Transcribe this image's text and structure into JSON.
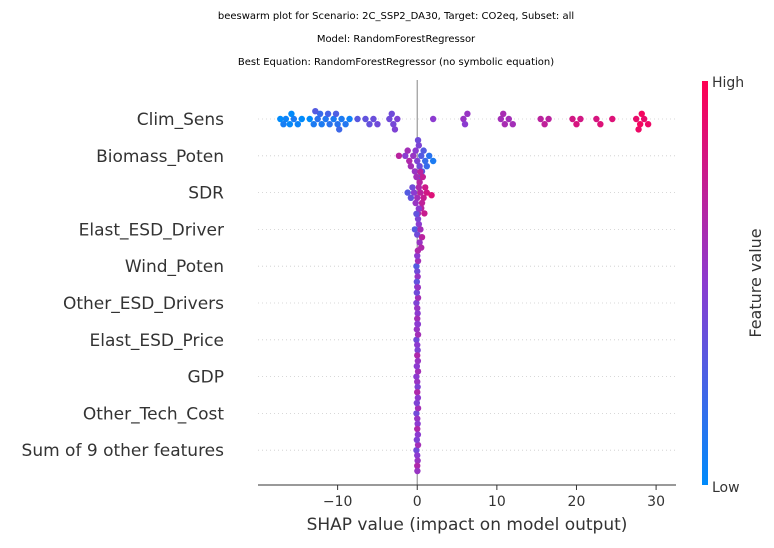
{
  "chart_data": {
    "type": "scatter",
    "subtype": "shap-beeswarm",
    "title_lines": [
      "beeswarm plot for Scenario: 2C_SSP2_DA30, Target: CO2eq, Subset: all",
      "Model: RandomForestRegressor",
      "Best Equation: RandomForestRegressor (no symbolic equation)"
    ],
    "xlabel": "SHAP value (impact on model output)",
    "xlim": [
      -20,
      32.5
    ],
    "xticks": [
      -10,
      0,
      10,
      20,
      30
    ],
    "xtick_labels": [
      "−10",
      "0",
      "10",
      "20",
      "30"
    ],
    "features": [
      "Clim_Sens",
      "Biomass_Poten",
      "SDR",
      "Elast_ESD_Driver",
      "Wind_Poten",
      "Other_ESD_Drivers",
      "Elast_ESD_Price",
      "GDP",
      "Other_Tech_Cost",
      "Sum of 9 other features"
    ],
    "colorbar": {
      "title": "Feature value",
      "high_label": "High",
      "low_label": "Low",
      "high_color": "#ff0052",
      "mid_color": "#8c3bd0",
      "low_color": "#008bfb"
    },
    "features_data": [
      {
        "name": "Clim_Sens",
        "points": [
          [
            -17.2,
            0.0
          ],
          [
            -16.5,
            0.05
          ],
          [
            -16.0,
            0.02
          ],
          [
            -15.5,
            0.1
          ],
          [
            -15.0,
            0.05
          ],
          [
            -14.5,
            0.0
          ],
          [
            -16.8,
            0.08
          ],
          [
            -15.8,
            0.0
          ],
          [
            -13.5,
            0.0
          ],
          [
            -13.0,
            0.1
          ],
          [
            -12.5,
            0.15
          ],
          [
            -12.0,
            0.1
          ],
          [
            -11.5,
            0.12
          ],
          [
            -11.0,
            0.15
          ],
          [
            -10.5,
            0.1
          ],
          [
            -10.0,
            0.15
          ],
          [
            -9.5,
            0.1
          ],
          [
            -9.0,
            0.12
          ],
          [
            -8.5,
            0.05
          ],
          [
            -12.2,
            0.2
          ],
          [
            -11.2,
            0.25
          ],
          [
            -10.2,
            0.28
          ],
          [
            -9.8,
            0.22
          ],
          [
            -12.8,
            0.3
          ],
          [
            -7.5,
            0.32
          ],
          [
            -6.5,
            0.35
          ],
          [
            -5.5,
            0.38
          ],
          [
            -5.0,
            0.4
          ],
          [
            -6.0,
            0.36
          ],
          [
            -3.5,
            0.4
          ],
          [
            -3.0,
            0.42
          ],
          [
            -2.5,
            0.45
          ],
          [
            -3.2,
            0.4
          ],
          [
            -2.8,
            0.45
          ],
          [
            2.0,
            0.5
          ],
          [
            5.8,
            0.55
          ],
          [
            6.0,
            0.5
          ],
          [
            6.3,
            0.55
          ],
          [
            10.5,
            0.6
          ],
          [
            11.0,
            0.62
          ],
          [
            11.5,
            0.6
          ],
          [
            10.8,
            0.62
          ],
          [
            12.0,
            0.6
          ],
          [
            15.5,
            0.7
          ],
          [
            16.0,
            0.72
          ],
          [
            16.5,
            0.7
          ],
          [
            19.5,
            0.8
          ],
          [
            20.0,
            0.82
          ],
          [
            20.5,
            0.8
          ],
          [
            22.5,
            0.82
          ],
          [
            23.0,
            0.85
          ],
          [
            24.5,
            0.85
          ],
          [
            27.5,
            0.9
          ],
          [
            28.0,
            0.95
          ],
          [
            28.5,
            0.9
          ],
          [
            29.0,
            0.92
          ],
          [
            28.2,
            0.95
          ],
          [
            27.8,
            0.92
          ]
        ]
      },
      {
        "name": "Biomass_Poten",
        "points": [
          [
            -2.3,
            0.7
          ],
          [
            -1.5,
            0.5
          ],
          [
            -1.0,
            0.65
          ],
          [
            -0.5,
            0.55
          ],
          [
            0.0,
            0.45
          ],
          [
            0.5,
            0.3
          ],
          [
            1.0,
            0.2
          ],
          [
            1.5,
            0.15
          ],
          [
            2.0,
            0.1
          ],
          [
            -1.2,
            0.6
          ],
          [
            -0.2,
            0.5
          ],
          [
            0.3,
            0.4
          ],
          [
            0.8,
            0.3
          ],
          [
            -0.8,
            0.6
          ],
          [
            0.2,
            0.45
          ],
          [
            0.6,
            0.3
          ],
          [
            1.2,
            0.2
          ],
          [
            -0.3,
            0.55
          ],
          [
            0.1,
            0.4
          ],
          [
            0.4,
            0.35
          ]
        ]
      },
      {
        "name": "SDR",
        "points": [
          [
            -1.2,
            0.3
          ],
          [
            -0.8,
            0.35
          ],
          [
            -0.4,
            0.5
          ],
          [
            0.0,
            0.6
          ],
          [
            0.4,
            0.7
          ],
          [
            0.8,
            0.75
          ],
          [
            1.2,
            0.8
          ],
          [
            1.8,
            0.85
          ],
          [
            -0.6,
            0.4
          ],
          [
            -0.2,
            0.55
          ],
          [
            0.2,
            0.65
          ],
          [
            0.6,
            0.72
          ],
          [
            1.0,
            0.78
          ],
          [
            0.3,
            0.68
          ],
          [
            0.5,
            0.7
          ],
          [
            -0.1,
            0.6
          ],
          [
            0.7,
            0.74
          ],
          [
            0.1,
            0.62
          ],
          [
            0.9,
            0.76
          ],
          [
            0.4,
            0.7
          ]
        ]
      },
      {
        "name": "Elast_ESD_Driver",
        "points": [
          [
            -0.3,
            0.3
          ],
          [
            0.0,
            0.4
          ],
          [
            0.2,
            0.5
          ],
          [
            0.4,
            0.6
          ],
          [
            0.6,
            0.7
          ],
          [
            0.1,
            0.45
          ],
          [
            0.3,
            0.55
          ],
          [
            -0.1,
            0.35
          ],
          [
            0.5,
            0.65
          ],
          [
            0.2,
            0.5
          ]
        ]
      },
      {
        "name": "Wind_Poten",
        "points": [
          [
            -0.1,
            0.3
          ],
          [
            0.0,
            0.4
          ],
          [
            0.1,
            0.6
          ],
          [
            0.0,
            0.5
          ],
          [
            0.05,
            0.55
          ],
          [
            -0.05,
            0.35
          ],
          [
            0.08,
            0.65
          ],
          [
            0.0,
            0.45
          ]
        ]
      },
      {
        "name": "Other_ESD_Drivers",
        "points": [
          [
            -0.1,
            0.45
          ],
          [
            0.0,
            0.55
          ],
          [
            0.1,
            0.6
          ],
          [
            0.05,
            0.5
          ],
          [
            -0.05,
            0.4
          ],
          [
            0.0,
            0.6
          ],
          [
            0.08,
            0.55
          ],
          [
            0.02,
            0.5
          ]
        ]
      },
      {
        "name": "Elast_ESD_Price",
        "points": [
          [
            -0.1,
            0.4
          ],
          [
            0.0,
            0.5
          ],
          [
            0.1,
            0.6
          ],
          [
            0.05,
            0.45
          ],
          [
            -0.05,
            0.55
          ],
          [
            0.0,
            0.65
          ],
          [
            0.08,
            0.5
          ]
        ]
      },
      {
        "name": "GDP",
        "points": [
          [
            -0.1,
            0.5
          ],
          [
            0.0,
            0.55
          ],
          [
            0.1,
            0.6
          ],
          [
            0.05,
            0.45
          ],
          [
            -0.05,
            0.5
          ],
          [
            0.0,
            0.65
          ],
          [
            0.08,
            0.55
          ]
        ]
      },
      {
        "name": "Other_Tech_Cost",
        "points": [
          [
            -0.1,
            0.4
          ],
          [
            0.0,
            0.55
          ],
          [
            0.1,
            0.6
          ],
          [
            0.05,
            0.5
          ],
          [
            -0.05,
            0.45
          ],
          [
            0.0,
            0.65
          ],
          [
            0.08,
            0.5
          ]
        ]
      },
      {
        "name": "Sum of 9 other features",
        "points": [
          [
            -0.1,
            0.4
          ],
          [
            0.0,
            0.5
          ],
          [
            0.1,
            0.6
          ],
          [
            0.05,
            0.55
          ],
          [
            -0.05,
            0.45
          ],
          [
            0.0,
            0.65
          ],
          [
            0.08,
            0.5
          ],
          [
            0.02,
            0.55
          ]
        ]
      }
    ]
  }
}
